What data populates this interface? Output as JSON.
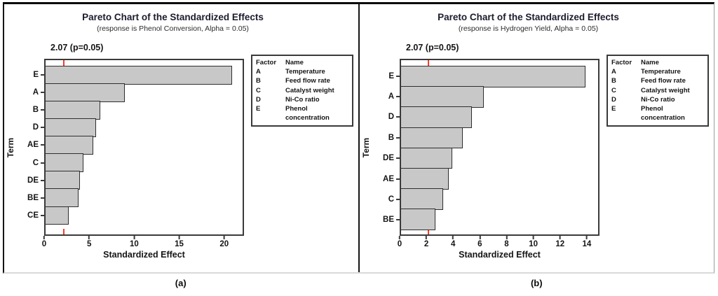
{
  "captions": [
    "(a)",
    "(b)"
  ],
  "styles": {
    "bar_fill": "#c8c8c8",
    "bar_border": "#2e2e2e",
    "plot_frame": "#3a3a3a",
    "reference_line_color": "#f93b2b",
    "title_color": "#1c1c2e"
  },
  "chart_data": [
    {
      "type": "bar",
      "orientation": "horizontal",
      "title": "Pareto Chart of the Standardized Effects",
      "subtitle": "(response is Phenol Conversion, Alpha = 0.05)",
      "xlabel": "Standardized Effect",
      "ylabel": "Term",
      "categories": [
        "E",
        "A",
        "B",
        "D",
        "AE",
        "C",
        "DE",
        "BE",
        "CE"
      ],
      "values": [
        21.0,
        8.9,
        6.2,
        5.7,
        5.4,
        4.3,
        3.9,
        3.7,
        2.6
      ],
      "xlim": [
        0,
        22.2
      ],
      "x_ticks": [
        0,
        5,
        10,
        15,
        20
      ],
      "grid": false,
      "reference_line": {
        "value": 2.07,
        "label": "2.07 (p=0.05)"
      },
      "legend": {
        "position": "right",
        "headers": [
          "Factor",
          "Name"
        ],
        "rows": [
          [
            "A",
            "Temperature"
          ],
          [
            "B",
            "Feed flow rate"
          ],
          [
            "C",
            "Catalyst weight"
          ],
          [
            "D",
            "Ni-Co ratio"
          ],
          [
            "E",
            "Phenol concentration"
          ]
        ]
      }
    },
    {
      "type": "bar",
      "orientation": "horizontal",
      "title": "Pareto Chart of the Standardized Effects",
      "subtitle": "(response is Hydrogen Yield, Alpha = 0.05)",
      "xlabel": "Standardized Effect",
      "ylabel": "Term",
      "categories": [
        "E",
        "A",
        "D",
        "B",
        "DE",
        "AE",
        "C",
        "BE"
      ],
      "values": [
        14.0,
        6.3,
        5.4,
        4.7,
        3.9,
        3.6,
        3.2,
        2.6
      ],
      "xlim": [
        0,
        14.95
      ],
      "x_ticks": [
        0,
        2,
        4,
        6,
        8,
        10,
        12,
        14
      ],
      "grid": false,
      "reference_line": {
        "value": 2.07,
        "label": "2.07 (p=0.05)"
      },
      "legend": {
        "position": "right",
        "headers": [
          "Factor",
          "Name"
        ],
        "rows": [
          [
            "A",
            "Temperature"
          ],
          [
            "B",
            "Feed flow rate"
          ],
          [
            "C",
            "Catalyst weight"
          ],
          [
            "D",
            "Ni-Co ratio"
          ],
          [
            "E",
            "Phenol concentration"
          ]
        ]
      }
    }
  ]
}
